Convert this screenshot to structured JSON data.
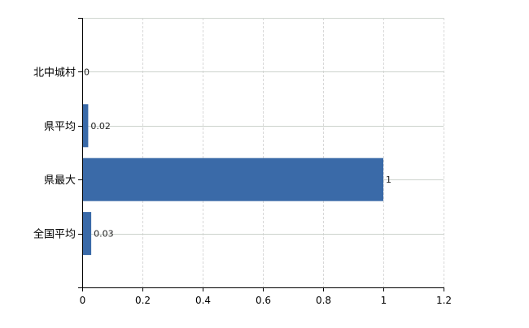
{
  "chart_data": {
    "type": "bar",
    "orientation": "horizontal",
    "categories": [
      "北中城村",
      "県平均",
      "県最大",
      "全国平均"
    ],
    "values": [
      0,
      0.02,
      1,
      0.03
    ],
    "data_labels": [
      "0",
      "0.02",
      "1",
      "0.03"
    ],
    "xlim": [
      0,
      1.2
    ],
    "xticks": [
      "0",
      "0.2",
      "0.4",
      "0.6",
      "0.8",
      "1",
      "1.2"
    ],
    "grid": true,
    "bar_color": "#3a6aa8",
    "title": "",
    "xlabel": "",
    "ylabel": ""
  }
}
